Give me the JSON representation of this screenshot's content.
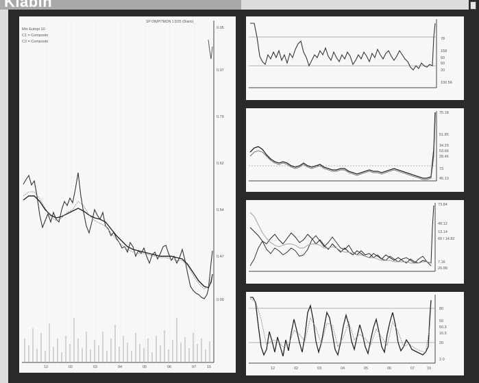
{
  "window": {
    "title": "Klabin"
  },
  "main_chart": {
    "header": "SP ON/PITMON 1.5/25 (Diario)",
    "legend": [
      "Min Eutopi 10",
      "C1 = Composto",
      "C2 = Composto"
    ],
    "price_labels": [
      "0.05",
      "0.07",
      "0.79",
      "0.62",
      "0.54",
      "0.47",
      "0.09"
    ],
    "x_labels": [
      "12",
      "02",
      "03",
      "04",
      "05",
      "06",
      "07",
      "15"
    ]
  },
  "indicator_1": {
    "labels": [
      "78",
      "158",
      "50",
      "50",
      "20",
      "100 56"
    ]
  },
  "indicator_2": {
    "labels": [
      "75.18",
      "51.85",
      "34.29",
      "53.66",
      "28.46",
      "73",
      "45.13"
    ]
  },
  "indicator_3": {
    "labels": [
      "73.84",
      "40.12",
      "13.14",
      "60 / 14.82",
      "7.16",
      "20.98"
    ]
  },
  "indicator_4": {
    "labels": [
      "80",
      "50",
      "50.3",
      "16.5",
      "20",
      "2.0"
    ],
    "x_labels": [
      "12",
      "02",
      "03",
      "04",
      "05",
      "06",
      "07",
      "15"
    ]
  }
}
